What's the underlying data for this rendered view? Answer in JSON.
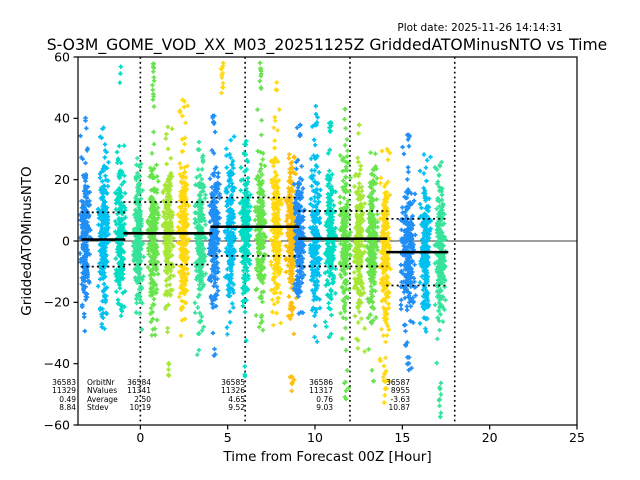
{
  "header": {
    "plot_date": "Plot date: 2025-11-26 14:14:31",
    "title": "S-O3M_GOME_VOD_XX_M03_20251125Z GriddedATOMinusNTO vs Time"
  },
  "chart_data": {
    "type": "scatter",
    "title": "S-O3M_GOME_VOD_XX_M03_20251125Z GriddedATOMinusNTO vs Time",
    "xlabel": "Time from Forecast 00Z [Hour]",
    "ylabel": "GriddedATOMinusNTO",
    "marker": "+",
    "xlim": [
      -3.57,
      25
    ],
    "ylim": [
      -60,
      60
    ],
    "xticks": [
      0,
      5,
      10,
      15,
      20,
      25
    ],
    "yticks": [
      -60,
      -40,
      -20,
      0,
      20,
      40,
      60
    ],
    "grid": false,
    "zero_line": 0,
    "vlines_dotted": [
      0,
      6,
      12,
      18
    ],
    "stats_labels": [
      "OrbitNr",
      "NValues",
      "Average",
      "Stdev"
    ],
    "orbits": [
      {
        "orbit_nr": "36583",
        "n_values": "11329",
        "average": "0.49",
        "stdev": "8.84",
        "span": [
          -3.38,
          -0.86
        ]
      },
      {
        "orbit_nr": "36584",
        "n_values": "11341",
        "average": "2.50",
        "stdev": "10.19",
        "span": [
          -0.97,
          4.12
        ]
      },
      {
        "orbit_nr": "36585",
        "n_values": "11326",
        "average": "4.65",
        "stdev": "9.52",
        "span": [
          4.01,
          9.1
        ]
      },
      {
        "orbit_nr": "36586",
        "n_values": "11317",
        "average": "0.76",
        "stdev": "9.03",
        "span": [
          9.04,
          14.14
        ]
      },
      {
        "orbit_nr": "36587",
        "n_values": "8955",
        "average": "-3.63",
        "stdev": "10.87",
        "span": [
          14.08,
          17.63
        ]
      }
    ],
    "streaks": [
      {
        "x": -3.15,
        "color": "#1f8ef5",
        "mu": 0.5,
        "sigma": 10.0,
        "top": 40,
        "bottom": -34,
        "n": 215,
        "w": 1,
        "out_top": [
          36.5,
          39.8
        ],
        "out_bot": []
      },
      {
        "x": -2.12,
        "color": "#00c0f0",
        "mu": 0.5,
        "sigma": 10.5,
        "top": 37,
        "bottom": -32,
        "n": 215,
        "w": 1,
        "out_top": [
          36.8
        ],
        "out_bot": []
      },
      {
        "x": -1.14,
        "color": "#00dcc3",
        "mu": 0.5,
        "sigma": 10.0,
        "top": 36,
        "bottom": -29,
        "n": 215,
        "w": 1,
        "out_top": [
          52,
          54.5,
          56.5
        ],
        "out_bot": []
      },
      {
        "x": -0.11,
        "color": "#35e49a",
        "mu": 1.0,
        "sigma": 10.5,
        "top": 31,
        "bottom": -35,
        "n": 215,
        "w": 1,
        "out_top": [],
        "out_bot": []
      },
      {
        "x": 0.74,
        "color": "#67e34e",
        "mu": 1.5,
        "sigma": 10.5,
        "top": 38,
        "bottom": -31,
        "n": 215,
        "w": 1,
        "out_top": [
          44,
          46,
          47.5,
          49,
          50.5,
          52,
          53.5,
          55,
          56.5,
          58
        ],
        "out_bot": []
      },
      {
        "x": 1.6,
        "color": "#a6e637",
        "mu": 2.0,
        "sigma": 11.0,
        "top": 38.5,
        "bottom": -44,
        "n": 215,
        "w": 1,
        "out_top": [],
        "out_bot": [
          -40,
          -42,
          -44
        ]
      },
      {
        "x": 2.46,
        "color": "#ffd90f",
        "mu": 2.5,
        "sigma": 11.5,
        "top": 46,
        "bottom": -31,
        "n": 215,
        "w": 1,
        "out_top": [
          41,
          43.5,
          46
        ],
        "out_bot": []
      },
      {
        "x": 3.43,
        "color": "#35e49a",
        "mu": 2.5,
        "sigma": 10.5,
        "top": 35,
        "bottom": -38,
        "n": 215,
        "w": 1,
        "out_top": [],
        "out_bot": []
      },
      {
        "x": 4.24,
        "color": "#1f8ef5",
        "mu": 2.5,
        "sigma": 10.5,
        "top": 41,
        "bottom": -37,
        "n": 215,
        "w": 1,
        "out_top": [
          38.5,
          41
        ],
        "out_bot": [
          -35,
          -37
        ]
      },
      {
        "x": 4.69,
        "color": "#ffd90f",
        "mu": 0,
        "sigma": 1,
        "top": 58,
        "bottom": -58,
        "n": 0,
        "w": 1,
        "out_top": [
          48,
          50,
          51.5,
          53,
          54.5,
          56,
          57.5
        ],
        "out_bot": []
      },
      {
        "x": 5.15,
        "color": "#00c0f0",
        "mu": 2.5,
        "sigma": 10.5,
        "top": 37,
        "bottom": -31,
        "n": 215,
        "w": 1,
        "out_top": [],
        "out_bot": []
      },
      {
        "x": 6.01,
        "color": "#00dcc3",
        "mu": 3.0,
        "sigma": 10.5,
        "top": 36,
        "bottom": -44,
        "n": 215,
        "w": 1,
        "out_top": [],
        "out_bot": [
          -41,
          -44
        ]
      },
      {
        "x": 6.87,
        "color": "#67e34e",
        "mu": 4.0,
        "sigma": 11.0,
        "top": 44,
        "bottom": -31,
        "n": 215,
        "w": 1,
        "out_top": [
          50,
          52,
          53.5,
          55,
          56.5,
          58
        ],
        "out_bot": []
      },
      {
        "x": 7.78,
        "color": "#ffd90f",
        "mu": 4.5,
        "sigma": 11.5,
        "top": 47,
        "bottom": -36,
        "n": 215,
        "w": 1,
        "out_top": [
          49,
          51.5
        ],
        "out_bot": []
      },
      {
        "x": 8.64,
        "color": "#ffbe0a",
        "mu": 4.0,
        "sigma": 11.5,
        "top": 30,
        "bottom": -49,
        "n": 215,
        "w": 1,
        "out_top": [],
        "out_bot": [
          -44,
          -46.5,
          -49
        ]
      },
      {
        "x": 9.1,
        "color": "#1f8ef5",
        "mu": 2.0,
        "sigma": 10.0,
        "top": 38,
        "bottom": -31,
        "n": 215,
        "w": 1,
        "out_top": [
          34.5,
          38
        ],
        "out_bot": []
      },
      {
        "x": 10.02,
        "color": "#00c0f0",
        "mu": 1.0,
        "sigma": 10.5,
        "top": 44,
        "bottom": -36,
        "n": 215,
        "w": 1,
        "out_top": [
          38,
          41,
          44
        ],
        "out_bot": []
      },
      {
        "x": 10.88,
        "color": "#00dcc3",
        "mu": 0.5,
        "sigma": 10.5,
        "top": 39,
        "bottom": -34,
        "n": 215,
        "w": 1,
        "out_top": [
          36,
          39
        ],
        "out_bot": []
      },
      {
        "x": 11.73,
        "color": "#67e34e",
        "mu": 0.5,
        "sigma": 11.0,
        "top": 43,
        "bottom": -51,
        "n": 215,
        "w": 1,
        "out_top": [
          39.5,
          43
        ],
        "out_bot": [
          -46,
          -48.5,
          -51
        ]
      },
      {
        "x": 12.54,
        "color": "#a6e637",
        "mu": -0.5,
        "sigma": 10.5,
        "top": 38,
        "bottom": -41,
        "n": 215,
        "w": 1,
        "out_top": [
          35,
          38
        ],
        "out_bot": []
      },
      {
        "x": 13.28,
        "color": "#67e34e",
        "mu": -1.5,
        "sigma": 10.5,
        "top": 30,
        "bottom": -46,
        "n": 215,
        "w": 1,
        "out_top": [],
        "out_bot": [
          -42,
          -46
        ]
      },
      {
        "x": 14.02,
        "color": "#ffd90f",
        "mu": -3.0,
        "sigma": 11.5,
        "top": 31,
        "bottom": -54,
        "n": 215,
        "w": 1,
        "out_top": [],
        "out_bot": [
          -43,
          -45.5,
          -48,
          -50.5,
          -53
        ]
      },
      {
        "x": 15.34,
        "color": "#1f8ef5",
        "mu": -3.5,
        "sigma": 10.0,
        "top": 35,
        "bottom": -42,
        "n": 240,
        "w": 1.4,
        "out_top": [
          31,
          33,
          35
        ],
        "out_bot": [
          -38,
          -40,
          -42
        ]
      },
      {
        "x": 16.31,
        "color": "#00c0f0",
        "mu": -3.5,
        "sigma": 10.0,
        "top": 32,
        "bottom": -31,
        "n": 215,
        "w": 1,
        "out_top": [],
        "out_bot": []
      },
      {
        "x": 17.17,
        "color": "#35e49a",
        "mu": -4.0,
        "sigma": 10.5,
        "top": 33,
        "bottom": -44,
        "n": 215,
        "w": 1,
        "out_top": [],
        "out_bot": [
          -46,
          -48,
          -50,
          -52,
          -54,
          -56,
          -57.5
        ]
      }
    ]
  }
}
